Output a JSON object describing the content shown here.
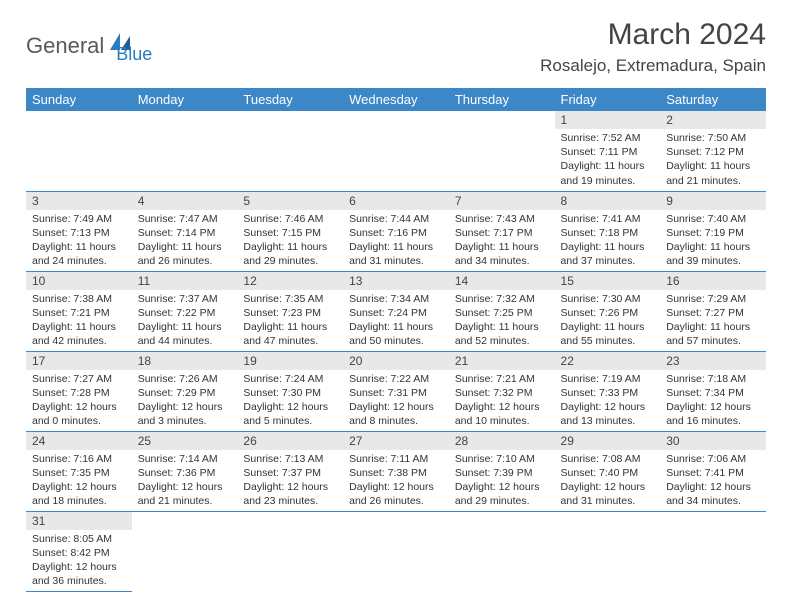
{
  "logo": {
    "text1": "General",
    "text2": "Blue"
  },
  "title": "March 2024",
  "location": "Rosalejo, Extremadura, Spain",
  "colors": {
    "header_bg": "#3b87c8",
    "header_text": "#ffffff",
    "daynum_bg": "#e8e8e8",
    "border": "#3b87c8",
    "logo_blue": "#2a7bbf",
    "logo_gray": "#5a5a5a"
  },
  "weekdays": [
    "Sunday",
    "Monday",
    "Tuesday",
    "Wednesday",
    "Thursday",
    "Friday",
    "Saturday"
  ],
  "weeks": [
    [
      null,
      null,
      null,
      null,
      null,
      {
        "n": "1",
        "sr": "Sunrise: 7:52 AM",
        "ss": "Sunset: 7:11 PM",
        "dl1": "Daylight: 11 hours",
        "dl2": "and 19 minutes."
      },
      {
        "n": "2",
        "sr": "Sunrise: 7:50 AM",
        "ss": "Sunset: 7:12 PM",
        "dl1": "Daylight: 11 hours",
        "dl2": "and 21 minutes."
      }
    ],
    [
      {
        "n": "3",
        "sr": "Sunrise: 7:49 AM",
        "ss": "Sunset: 7:13 PM",
        "dl1": "Daylight: 11 hours",
        "dl2": "and 24 minutes."
      },
      {
        "n": "4",
        "sr": "Sunrise: 7:47 AM",
        "ss": "Sunset: 7:14 PM",
        "dl1": "Daylight: 11 hours",
        "dl2": "and 26 minutes."
      },
      {
        "n": "5",
        "sr": "Sunrise: 7:46 AM",
        "ss": "Sunset: 7:15 PM",
        "dl1": "Daylight: 11 hours",
        "dl2": "and 29 minutes."
      },
      {
        "n": "6",
        "sr": "Sunrise: 7:44 AM",
        "ss": "Sunset: 7:16 PM",
        "dl1": "Daylight: 11 hours",
        "dl2": "and 31 minutes."
      },
      {
        "n": "7",
        "sr": "Sunrise: 7:43 AM",
        "ss": "Sunset: 7:17 PM",
        "dl1": "Daylight: 11 hours",
        "dl2": "and 34 minutes."
      },
      {
        "n": "8",
        "sr": "Sunrise: 7:41 AM",
        "ss": "Sunset: 7:18 PM",
        "dl1": "Daylight: 11 hours",
        "dl2": "and 37 minutes."
      },
      {
        "n": "9",
        "sr": "Sunrise: 7:40 AM",
        "ss": "Sunset: 7:19 PM",
        "dl1": "Daylight: 11 hours",
        "dl2": "and 39 minutes."
      }
    ],
    [
      {
        "n": "10",
        "sr": "Sunrise: 7:38 AM",
        "ss": "Sunset: 7:21 PM",
        "dl1": "Daylight: 11 hours",
        "dl2": "and 42 minutes."
      },
      {
        "n": "11",
        "sr": "Sunrise: 7:37 AM",
        "ss": "Sunset: 7:22 PM",
        "dl1": "Daylight: 11 hours",
        "dl2": "and 44 minutes."
      },
      {
        "n": "12",
        "sr": "Sunrise: 7:35 AM",
        "ss": "Sunset: 7:23 PM",
        "dl1": "Daylight: 11 hours",
        "dl2": "and 47 minutes."
      },
      {
        "n": "13",
        "sr": "Sunrise: 7:34 AM",
        "ss": "Sunset: 7:24 PM",
        "dl1": "Daylight: 11 hours",
        "dl2": "and 50 minutes."
      },
      {
        "n": "14",
        "sr": "Sunrise: 7:32 AM",
        "ss": "Sunset: 7:25 PM",
        "dl1": "Daylight: 11 hours",
        "dl2": "and 52 minutes."
      },
      {
        "n": "15",
        "sr": "Sunrise: 7:30 AM",
        "ss": "Sunset: 7:26 PM",
        "dl1": "Daylight: 11 hours",
        "dl2": "and 55 minutes."
      },
      {
        "n": "16",
        "sr": "Sunrise: 7:29 AM",
        "ss": "Sunset: 7:27 PM",
        "dl1": "Daylight: 11 hours",
        "dl2": "and 57 minutes."
      }
    ],
    [
      {
        "n": "17",
        "sr": "Sunrise: 7:27 AM",
        "ss": "Sunset: 7:28 PM",
        "dl1": "Daylight: 12 hours",
        "dl2": "and 0 minutes."
      },
      {
        "n": "18",
        "sr": "Sunrise: 7:26 AM",
        "ss": "Sunset: 7:29 PM",
        "dl1": "Daylight: 12 hours",
        "dl2": "and 3 minutes."
      },
      {
        "n": "19",
        "sr": "Sunrise: 7:24 AM",
        "ss": "Sunset: 7:30 PM",
        "dl1": "Daylight: 12 hours",
        "dl2": "and 5 minutes."
      },
      {
        "n": "20",
        "sr": "Sunrise: 7:22 AM",
        "ss": "Sunset: 7:31 PM",
        "dl1": "Daylight: 12 hours",
        "dl2": "and 8 minutes."
      },
      {
        "n": "21",
        "sr": "Sunrise: 7:21 AM",
        "ss": "Sunset: 7:32 PM",
        "dl1": "Daylight: 12 hours",
        "dl2": "and 10 minutes."
      },
      {
        "n": "22",
        "sr": "Sunrise: 7:19 AM",
        "ss": "Sunset: 7:33 PM",
        "dl1": "Daylight: 12 hours",
        "dl2": "and 13 minutes."
      },
      {
        "n": "23",
        "sr": "Sunrise: 7:18 AM",
        "ss": "Sunset: 7:34 PM",
        "dl1": "Daylight: 12 hours",
        "dl2": "and 16 minutes."
      }
    ],
    [
      {
        "n": "24",
        "sr": "Sunrise: 7:16 AM",
        "ss": "Sunset: 7:35 PM",
        "dl1": "Daylight: 12 hours",
        "dl2": "and 18 minutes."
      },
      {
        "n": "25",
        "sr": "Sunrise: 7:14 AM",
        "ss": "Sunset: 7:36 PM",
        "dl1": "Daylight: 12 hours",
        "dl2": "and 21 minutes."
      },
      {
        "n": "26",
        "sr": "Sunrise: 7:13 AM",
        "ss": "Sunset: 7:37 PM",
        "dl1": "Daylight: 12 hours",
        "dl2": "and 23 minutes."
      },
      {
        "n": "27",
        "sr": "Sunrise: 7:11 AM",
        "ss": "Sunset: 7:38 PM",
        "dl1": "Daylight: 12 hours",
        "dl2": "and 26 minutes."
      },
      {
        "n": "28",
        "sr": "Sunrise: 7:10 AM",
        "ss": "Sunset: 7:39 PM",
        "dl1": "Daylight: 12 hours",
        "dl2": "and 29 minutes."
      },
      {
        "n": "29",
        "sr": "Sunrise: 7:08 AM",
        "ss": "Sunset: 7:40 PM",
        "dl1": "Daylight: 12 hours",
        "dl2": "and 31 minutes."
      },
      {
        "n": "30",
        "sr": "Sunrise: 7:06 AM",
        "ss": "Sunset: 7:41 PM",
        "dl1": "Daylight: 12 hours",
        "dl2": "and 34 minutes."
      }
    ],
    [
      {
        "n": "31",
        "sr": "Sunrise: 8:05 AM",
        "ss": "Sunset: 8:42 PM",
        "dl1": "Daylight: 12 hours",
        "dl2": "and 36 minutes."
      },
      null,
      null,
      null,
      null,
      null,
      null
    ]
  ]
}
